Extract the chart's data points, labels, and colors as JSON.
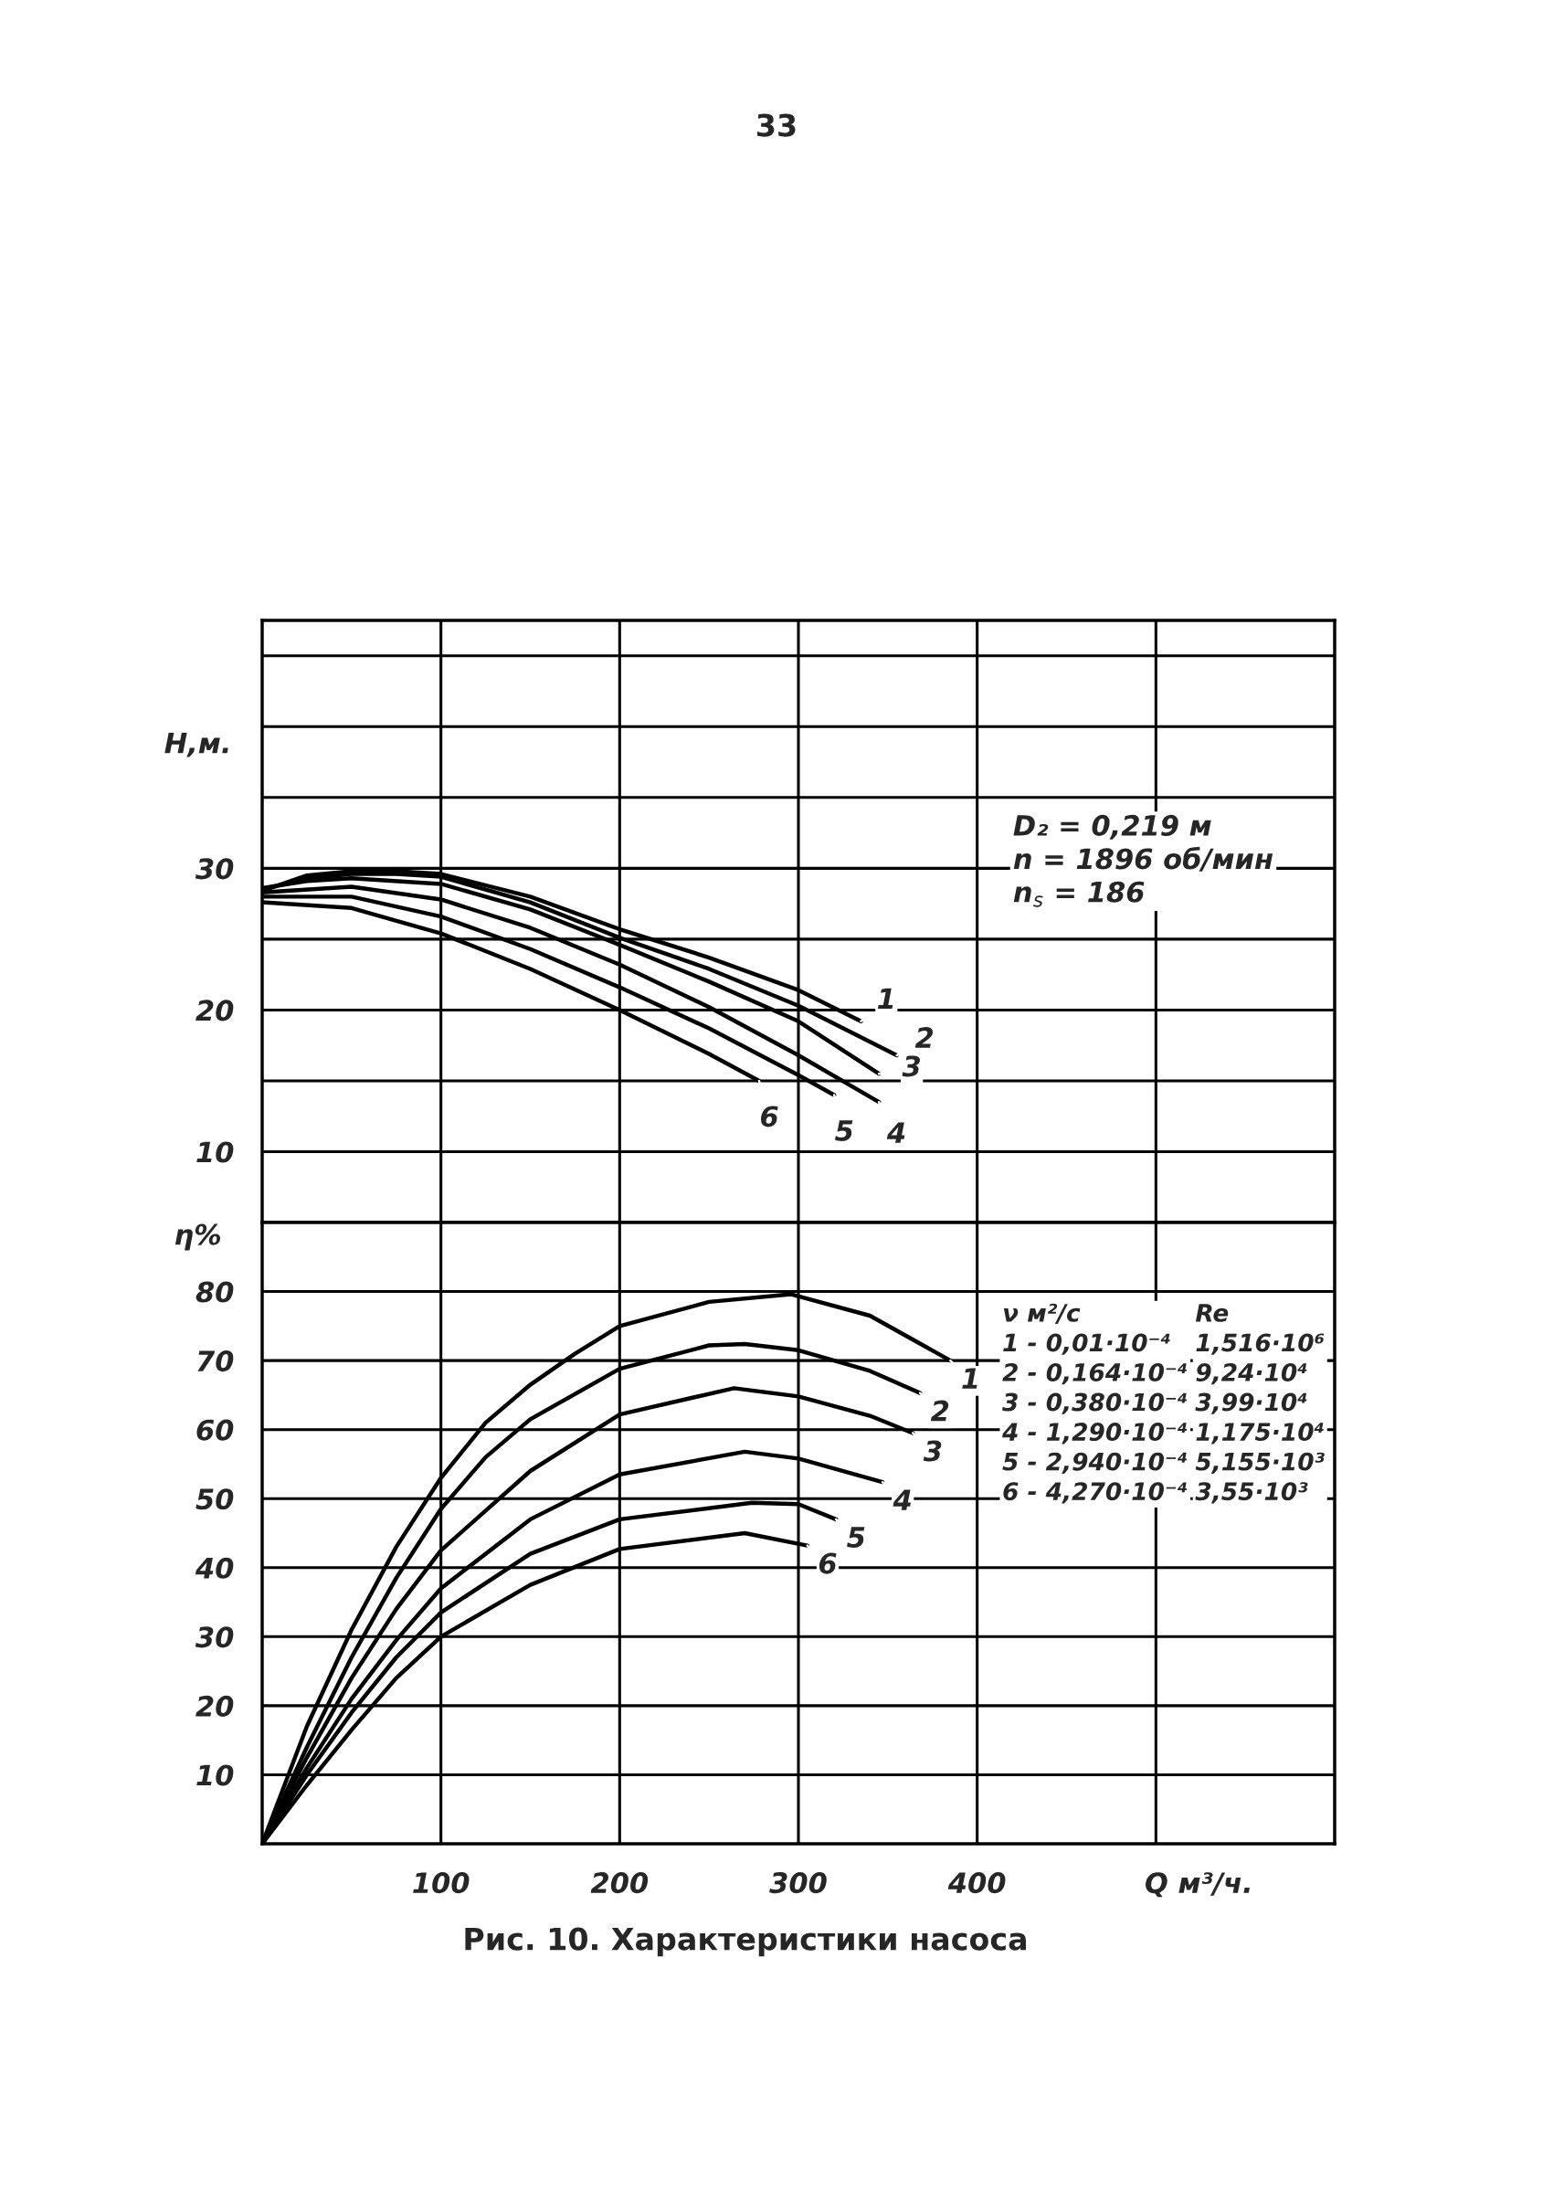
{
  "chart_data": [
    {
      "type": "line",
      "ylabel": "Н,м.",
      "xlim": [
        0,
        600
      ],
      "ylim": [
        5,
        47.5
      ],
      "xticks": [
        100,
        200,
        300,
        400,
        {
          "value": 500,
          "label": null
        }
      ],
      "yticks": [
        {
          "value": 5,
          "label": null
        },
        10,
        {
          "value": 15,
          "label": null
        },
        20,
        {
          "value": 25,
          "label": null
        },
        30,
        {
          "value": 35,
          "label": null
        },
        {
          "value": 40,
          "label": null
        },
        {
          "value": 45,
          "label": null
        }
      ],
      "tick_labels": "y",
      "grid": true,
      "marker": "none",
      "line_style": "solid",
      "series": [
        {
          "color": "#000000",
          "x": [
            0,
            25,
            50,
            75,
            100,
            150,
            200,
            250,
            300,
            335
          ],
          "values": [
            28.4,
            29.5,
            29.8,
            29.8,
            29.6,
            28.0,
            25.7,
            23.7,
            21.4,
            19.2
          ]
        },
        {
          "color": "#000000",
          "x": [
            0,
            25,
            50,
            75,
            100,
            150,
            200,
            250,
            300,
            355
          ],
          "values": [
            28.5,
            29.3,
            29.6,
            29.6,
            29.4,
            27.6,
            25.1,
            22.9,
            20.3,
            16.8
          ]
        },
        {
          "color": "#000000",
          "x": [
            0,
            25,
            50,
            100,
            150,
            200,
            250,
            300,
            345
          ],
          "values": [
            28.6,
            29.1,
            29.3,
            28.9,
            27.1,
            24.6,
            22.0,
            19.2,
            15.5
          ]
        },
        {
          "color": "#000000",
          "x": [
            0,
            50,
            100,
            150,
            200,
            250,
            300,
            345
          ],
          "values": [
            28.3,
            28.7,
            27.8,
            25.8,
            23.2,
            20.2,
            16.8,
            13.5
          ]
        },
        {
          "color": "#000000",
          "x": [
            0,
            50,
            100,
            150,
            200,
            250,
            300,
            320
          ],
          "values": [
            28.0,
            28.0,
            26.6,
            24.3,
            21.6,
            18.7,
            15.4,
            14.0
          ]
        },
        {
          "color": "#000000",
          "x": [
            0,
            50,
            100,
            150,
            200,
            250,
            278
          ],
          "values": [
            27.6,
            27.2,
            25.4,
            22.9,
            20.0,
            16.9,
            15.0
          ]
        }
      ],
      "annotations": [
        {
          "text": "1",
          "x": 335,
          "y": 19.2
        },
        {
          "text": "2",
          "x": 355,
          "y": 16.8
        },
        {
          "text": "3",
          "x": 345,
          "y": 15.5
        },
        {
          "text": "4",
          "x": 345,
          "y": 13.5
        },
        {
          "text": "5",
          "x": 320,
          "y": 14.0
        },
        {
          "text": "6",
          "x": 278,
          "y": 15.0
        },
        "33",
        "D₂ = 0,219 м\nn = 1896 об/мин\nn$_{s}$ = 186"
      ]
    },
    {
      "type": "line",
      "ylabel": "η%",
      "xlabel": "Q м³/ч.",
      "xlim": [
        0,
        600
      ],
      "ylim": [
        0,
        90
      ],
      "xticks": [
        100,
        200,
        300,
        400,
        {
          "value": 500,
          "label": null
        }
      ],
      "yticks": [
        10,
        20,
        30,
        40,
        50,
        60,
        70,
        80
      ],
      "grid": true,
      "marker": "none",
      "line_style": "solid",
      "series": [
        {
          "color": "#000000",
          "x": [
            0,
            25,
            50,
            75,
            100,
            125,
            150,
            175,
            200,
            250,
            296,
            340,
            385
          ],
          "values": [
            0,
            17,
            31,
            43,
            53,
            61,
            66.5,
            71,
            75,
            78.5,
            79.6,
            76.5,
            70
          ]
        },
        {
          "color": "#000000",
          "x": [
            0,
            25,
            50,
            75,
            100,
            125,
            150,
            200,
            250,
            270,
            300,
            340,
            368
          ],
          "values": [
            0,
            14,
            27,
            38.5,
            48.5,
            56,
            61.5,
            68.8,
            72.2,
            72.4,
            71.5,
            68.5,
            65.3
          ]
        },
        {
          "color": "#000000",
          "x": [
            0,
            25,
            50,
            75,
            100,
            150,
            200,
            264,
            300,
            340,
            364
          ],
          "values": [
            0,
            12.5,
            24,
            34,
            42.5,
            54,
            62.2,
            66,
            64.8,
            62,
            59.5
          ]
        },
        {
          "color": "#000000",
          "x": [
            0,
            25,
            50,
            75,
            100,
            150,
            200,
            270,
            300,
            347
          ],
          "values": [
            0,
            11,
            21,
            29.5,
            37,
            47,
            53.5,
            56.8,
            55.8,
            52.4
          ]
        },
        {
          "color": "#000000",
          "x": [
            0,
            25,
            50,
            75,
            100,
            150,
            200,
            274,
            300,
            321
          ],
          "values": [
            0,
            10,
            19,
            27,
            33.5,
            42,
            47,
            49.4,
            49.2,
            47
          ]
        },
        {
          "color": "#000000",
          "x": [
            0,
            25,
            50,
            75,
            100,
            150,
            200,
            270,
            305
          ],
          "values": [
            0,
            8.5,
            16.5,
            24,
            30,
            37.5,
            42.7,
            45,
            43.2
          ]
        }
      ],
      "annotations": [
        {
          "text": "1",
          "x": 385,
          "y": 70
        },
        {
          "text": "2",
          "x": 368,
          "y": 65.3
        },
        {
          "text": "3",
          "x": 364,
          "y": 59.5
        },
        {
          "text": "4",
          "x": 347,
          "y": 52.4
        },
        {
          "text": "5",
          "x": 321,
          "y": 47
        },
        {
          "text": "6",
          "x": 305,
          "y": 43.2
        },
        "ν м²/с\n1 - 0,01·10⁻⁴\n2 - 0,164·10⁻⁴\n3 - 0,380·10⁻⁴\n4 - 1,290·10⁻⁴\n5 - 2,940·10⁻⁴\n6 - 4,270·10⁻⁴",
        "Re\n1,516·10⁶\n9,24·10⁴\n3,99·10⁴\n1,175·10⁴\n5,155·10³\n3,55·10³",
        "Рис. 10. Характеристики насоса"
      ]
    }
  ]
}
